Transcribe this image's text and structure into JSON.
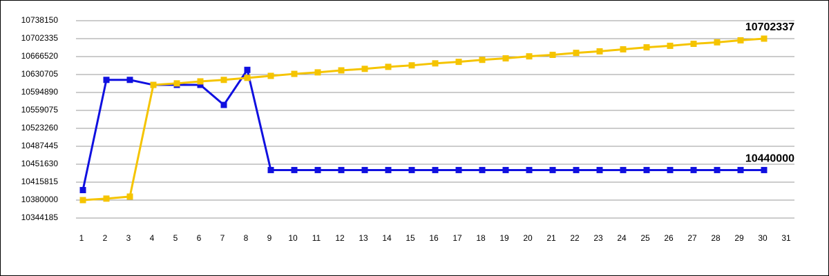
{
  "chart_data": {
    "type": "line",
    "x": [
      1,
      2,
      3,
      4,
      5,
      6,
      7,
      8,
      9,
      10,
      11,
      12,
      13,
      14,
      15,
      16,
      17,
      18,
      19,
      20,
      21,
      22,
      23,
      24,
      25,
      26,
      27,
      28,
      29,
      30
    ],
    "series": [
      {
        "color": "#1010e0",
        "values": [
          10400000,
          10620000,
          10620000,
          10610000,
          10610000,
          10610000,
          10570000,
          10640000,
          10440000,
          10440000,
          10440000,
          10440000,
          10440000,
          10440000,
          10440000,
          10440000,
          10440000,
          10440000,
          10440000,
          10440000,
          10440000,
          10440000,
          10440000,
          10440000,
          10440000,
          10440000,
          10440000,
          10440000,
          10440000,
          10440000
        ]
      },
      {
        "color": "#f5c400",
        "values": [
          10380000,
          10383000,
          10387000,
          10610000,
          10613000,
          10617000,
          10620000,
          10624000,
          10628000,
          10632000,
          10635000,
          10639000,
          10642000,
          10646000,
          10649000,
          10653000,
          10656000,
          10660000,
          10663000,
          10667000,
          10670000,
          10674000,
          10677000,
          10681000,
          10685000,
          10688000,
          10692000,
          10695000,
          10699000,
          10702337
        ]
      }
    ],
    "xlim": [
      1,
      31
    ],
    "xticks": [
      1,
      2,
      3,
      4,
      5,
      6,
      7,
      8,
      9,
      10,
      11,
      12,
      13,
      14,
      15,
      16,
      17,
      18,
      19,
      20,
      21,
      22,
      23,
      24,
      25,
      26,
      27,
      28,
      29,
      30,
      31
    ],
    "ylim": [
      10344185,
      10738150
    ],
    "yticks": [
      10344185,
      10380000,
      10415815,
      10451630,
      10487445,
      10523260,
      10559075,
      10594890,
      10630705,
      10666520,
      10702335,
      10738150
    ],
    "grid": true
  }
}
